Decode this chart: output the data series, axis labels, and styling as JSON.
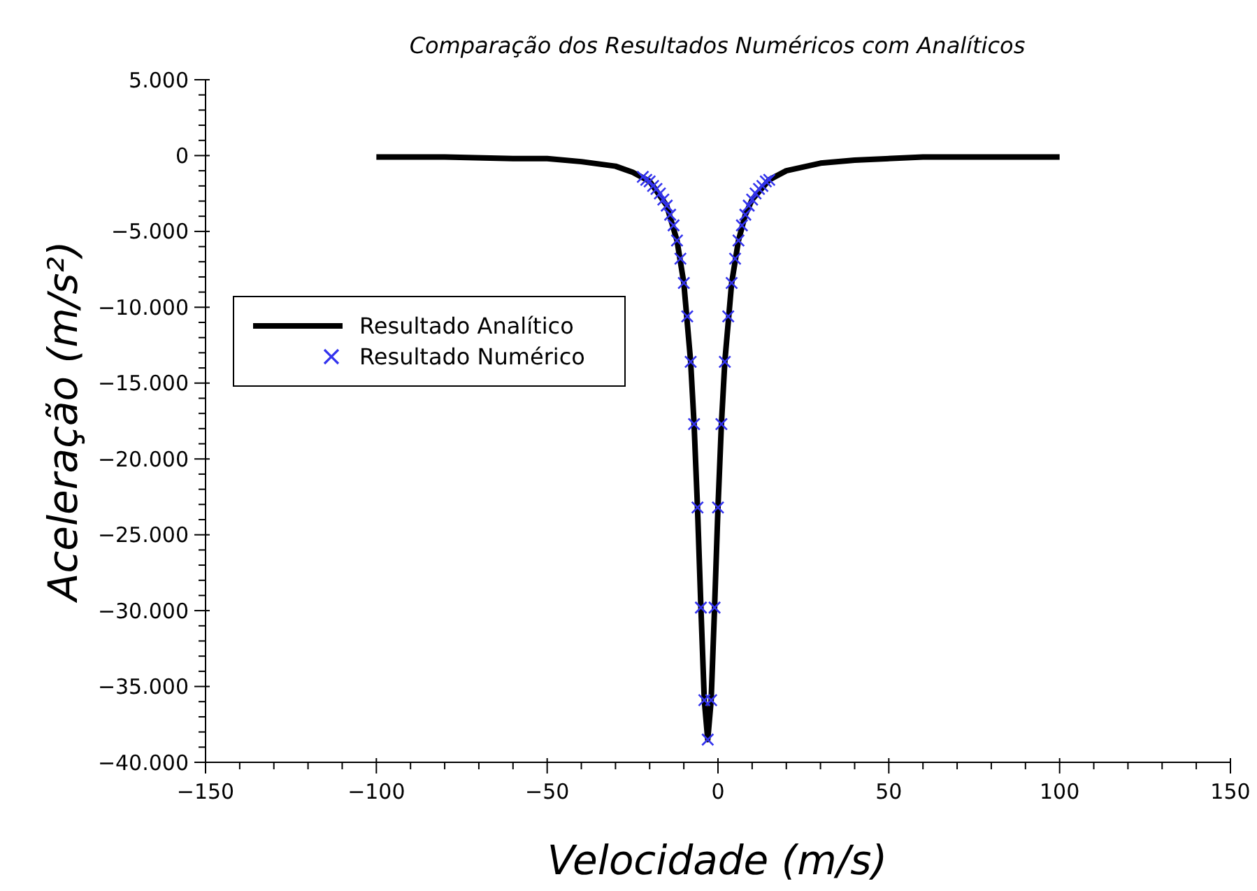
{
  "chart_data": {
    "type": "line",
    "title": "Comparação dos Resultados Numéricos com Analíticos",
    "xlabel": "Velocidade (m/s)",
    "ylabel": "Aceleração (m/s²)",
    "legend": "left",
    "line_style": "solid",
    "xlim": [
      -150,
      150
    ],
    "ylim": [
      -40000,
      5000
    ],
    "xticks": [
      {
        "value": -150,
        "label": "−150"
      },
      {
        "value": -140,
        "label": null
      },
      {
        "value": -130,
        "label": null
      },
      {
        "value": -120,
        "label": null
      },
      {
        "value": -110,
        "label": null
      },
      {
        "value": -100,
        "label": "−100"
      },
      {
        "value": -90,
        "label": null
      },
      {
        "value": -80,
        "label": null
      },
      {
        "value": -70,
        "label": null
      },
      {
        "value": -60,
        "label": null
      },
      {
        "value": -50,
        "label": "−50"
      },
      {
        "value": -40,
        "label": null
      },
      {
        "value": -30,
        "label": null
      },
      {
        "value": -20,
        "label": null
      },
      {
        "value": -10,
        "label": null
      },
      0,
      {
        "value": 10,
        "label": null
      },
      {
        "value": 20,
        "label": null
      },
      {
        "value": 30,
        "label": null
      },
      {
        "value": 40,
        "label": null
      },
      50,
      {
        "value": 60,
        "label": null
      },
      {
        "value": 70,
        "label": null
      },
      {
        "value": 80,
        "label": null
      },
      {
        "value": 90,
        "label": null
      },
      100,
      {
        "value": 110,
        "label": null
      },
      {
        "value": 120,
        "label": null
      },
      {
        "value": 130,
        "label": null
      },
      {
        "value": 140,
        "label": null
      },
      150
    ],
    "yticks": [
      {
        "value": -40000,
        "label": "−40.000"
      },
      {
        "value": -39000,
        "label": null
      },
      {
        "value": -38000,
        "label": null
      },
      {
        "value": -37000,
        "label": null
      },
      {
        "value": -36000,
        "label": null
      },
      {
        "value": -35000,
        "label": "−35.000"
      },
      {
        "value": -34000,
        "label": null
      },
      {
        "value": -33000,
        "label": null
      },
      {
        "value": -32000,
        "label": null
      },
      {
        "value": -31000,
        "label": null
      },
      {
        "value": -30000,
        "label": "−30.000"
      },
      {
        "value": -29000,
        "label": null
      },
      {
        "value": -28000,
        "label": null
      },
      {
        "value": -27000,
        "label": null
      },
      {
        "value": -26000,
        "label": null
      },
      {
        "value": -25000,
        "label": "−25.000"
      },
      {
        "value": -24000,
        "label": null
      },
      {
        "value": -23000,
        "label": null
      },
      {
        "value": -22000,
        "label": null
      },
      {
        "value": -21000,
        "label": null
      },
      {
        "value": -20000,
        "label": "−20.000"
      },
      {
        "value": -19000,
        "label": null
      },
      {
        "value": -18000,
        "label": null
      },
      {
        "value": -17000,
        "label": null
      },
      {
        "value": -16000,
        "label": null
      },
      {
        "value": -15000,
        "label": "−15.000"
      },
      {
        "value": -14000,
        "label": null
      },
      {
        "value": -13000,
        "label": null
      },
      {
        "value": -12000,
        "label": null
      },
      {
        "value": -11000,
        "label": null
      },
      {
        "value": -10000,
        "label": "−10.000"
      },
      {
        "value": -9000,
        "label": null
      },
      {
        "value": -8000,
        "label": null
      },
      {
        "value": -7000,
        "label": null
      },
      {
        "value": -6000,
        "label": null
      },
      {
        "value": -5000,
        "label": "−5.000"
      },
      {
        "value": -4000,
        "label": null
      },
      {
        "value": -3000,
        "label": null
      },
      {
        "value": -2000,
        "label": null
      },
      {
        "value": -1000,
        "label": null
      },
      0,
      {
        "value": 1000,
        "label": null
      },
      {
        "value": 2000,
        "label": null
      },
      {
        "value": 3000,
        "label": null
      },
      {
        "value": 4000,
        "label": null
      },
      {
        "value": 5000,
        "label": "5.000"
      }
    ],
    "series": [
      {
        "name": "Resultado Analítico",
        "color": "#000000",
        "x": [
          -100,
          -80,
          -60,
          -50,
          -40,
          -30,
          -25,
          -20,
          -15,
          -12,
          -10,
          -8,
          -7,
          -6,
          -5,
          -4,
          -3,
          -2,
          -1,
          0,
          1,
          2,
          4,
          6,
          8,
          10,
          15,
          20,
          30,
          40,
          60,
          80,
          100
        ],
        "values": [
          -100,
          -100,
          -200,
          -200,
          -400,
          -700,
          -1100,
          -1700,
          -3300,
          -5600,
          -8400,
          -13600,
          -17700,
          -23200,
          -29800,
          -35900,
          -38500,
          -35900,
          -29800,
          -23200,
          -17700,
          -13600,
          -8400,
          -5600,
          -3900,
          -2900,
          -1600,
          -1000,
          -500,
          -300,
          -100,
          -100,
          -100
        ]
      },
      {
        "name": "Resultado Numérico",
        "type": "scatter",
        "marker": "cross",
        "color": "#3333ee",
        "x": [
          -22,
          -21,
          -20,
          -19,
          -18,
          -17,
          -16,
          -15,
          -14,
          -13,
          -12,
          -11,
          -10,
          -9,
          -8,
          -7,
          -6,
          -5,
          -4,
          -3,
          -2,
          -1,
          0,
          1,
          2,
          3,
          4,
          5,
          6,
          7,
          8,
          9,
          10,
          11,
          12,
          13,
          14,
          15
        ],
        "values": [
          -1400,
          -1600,
          -1700,
          -2000,
          -2200,
          -2500,
          -2900,
          -3300,
          -3900,
          -4600,
          -5600,
          -6800,
          -8400,
          -10600,
          -13600,
          -17700,
          -23200,
          -29800,
          -35900,
          -38500,
          -35900,
          -29800,
          -23200,
          -17700,
          -13600,
          -10600,
          -8400,
          -6800,
          -5600,
          -4600,
          -3900,
          -3300,
          -2900,
          -2500,
          -2200,
          -2000,
          -1700,
          -1600
        ]
      }
    ]
  }
}
